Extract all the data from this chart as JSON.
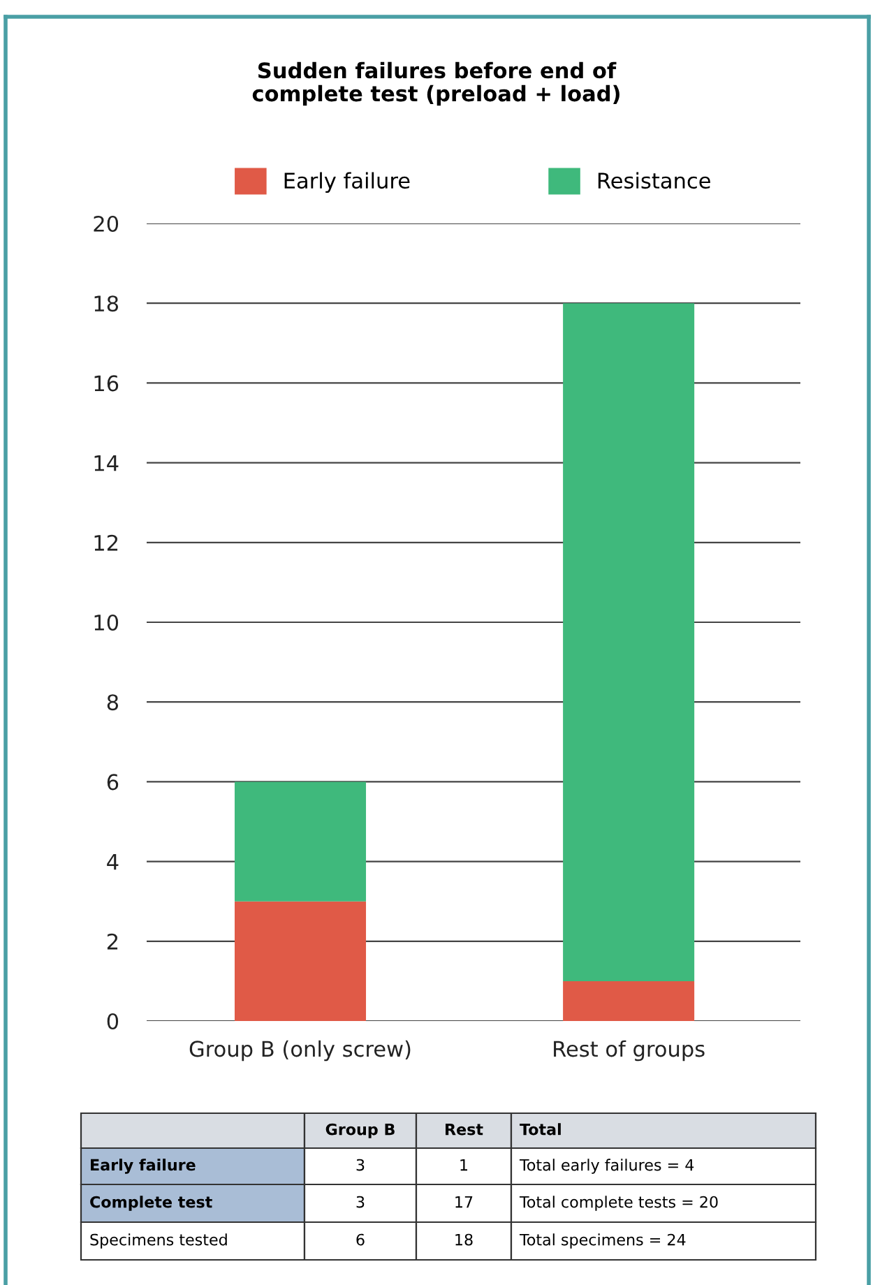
{
  "chart_data": {
    "type": "bar",
    "title": "Sudden failures before end of\ncomplete test (preload + load)",
    "categories": [
      "Group B (only screw)",
      "Rest of groups"
    ],
    "series": [
      {
        "name": "Early failure",
        "color": "#e05a47",
        "values": [
          3,
          1
        ]
      },
      {
        "name": "Resistance",
        "color": "#3fb97c",
        "values": [
          3,
          17
        ]
      }
    ],
    "stacked": true,
    "ylim": [
      0,
      20
    ],
    "yticks": [
      0,
      2,
      4,
      6,
      8,
      10,
      12,
      14,
      16,
      18,
      20
    ],
    "grid": "y",
    "legend": "top",
    "annotations": [
      "Group B",
      "Rest",
      "Total",
      "Early failure",
      "3",
      "1",
      "Total early failures = 4",
      "Complete test",
      "3",
      "17",
      "Total complete tests = 20",
      "Specimens tested",
      "6",
      "18",
      "Total specimens = 24"
    ]
  }
}
